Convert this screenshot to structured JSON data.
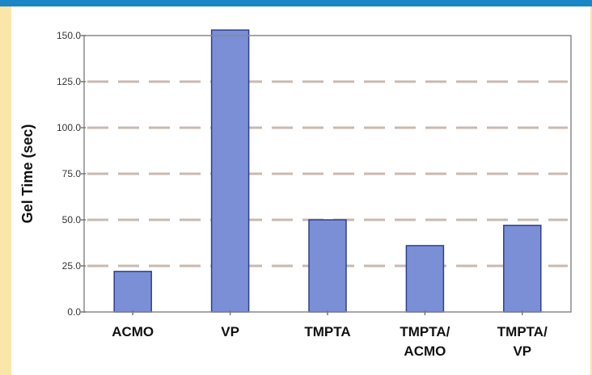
{
  "chart_data": {
    "type": "bar",
    "categories": [
      "ACMO",
      "VP",
      "TMPTA",
      "TMPTA/ACMO",
      "TMPTA/VP"
    ],
    "category_lines": [
      [
        "ACMO"
      ],
      [
        "VP"
      ],
      [
        "TMPTA"
      ],
      [
        "TMPTA/",
        "ACMO"
      ],
      [
        "TMPTA/",
        "VP"
      ]
    ],
    "values": [
      22,
      153,
      50,
      36,
      47
    ],
    "ylabel": "Gel Time (sec)",
    "xlabel": "",
    "ylim": [
      0,
      150
    ],
    "yticks": [
      "0.0",
      "25.0",
      "50.0",
      "75.0",
      "100.0",
      "125.0",
      "150.0"
    ],
    "grid": true,
    "bar_color": "#7b8fd6",
    "bar_edge_color": "#2f3f8f",
    "grid_color": "#c9b9b0"
  }
}
